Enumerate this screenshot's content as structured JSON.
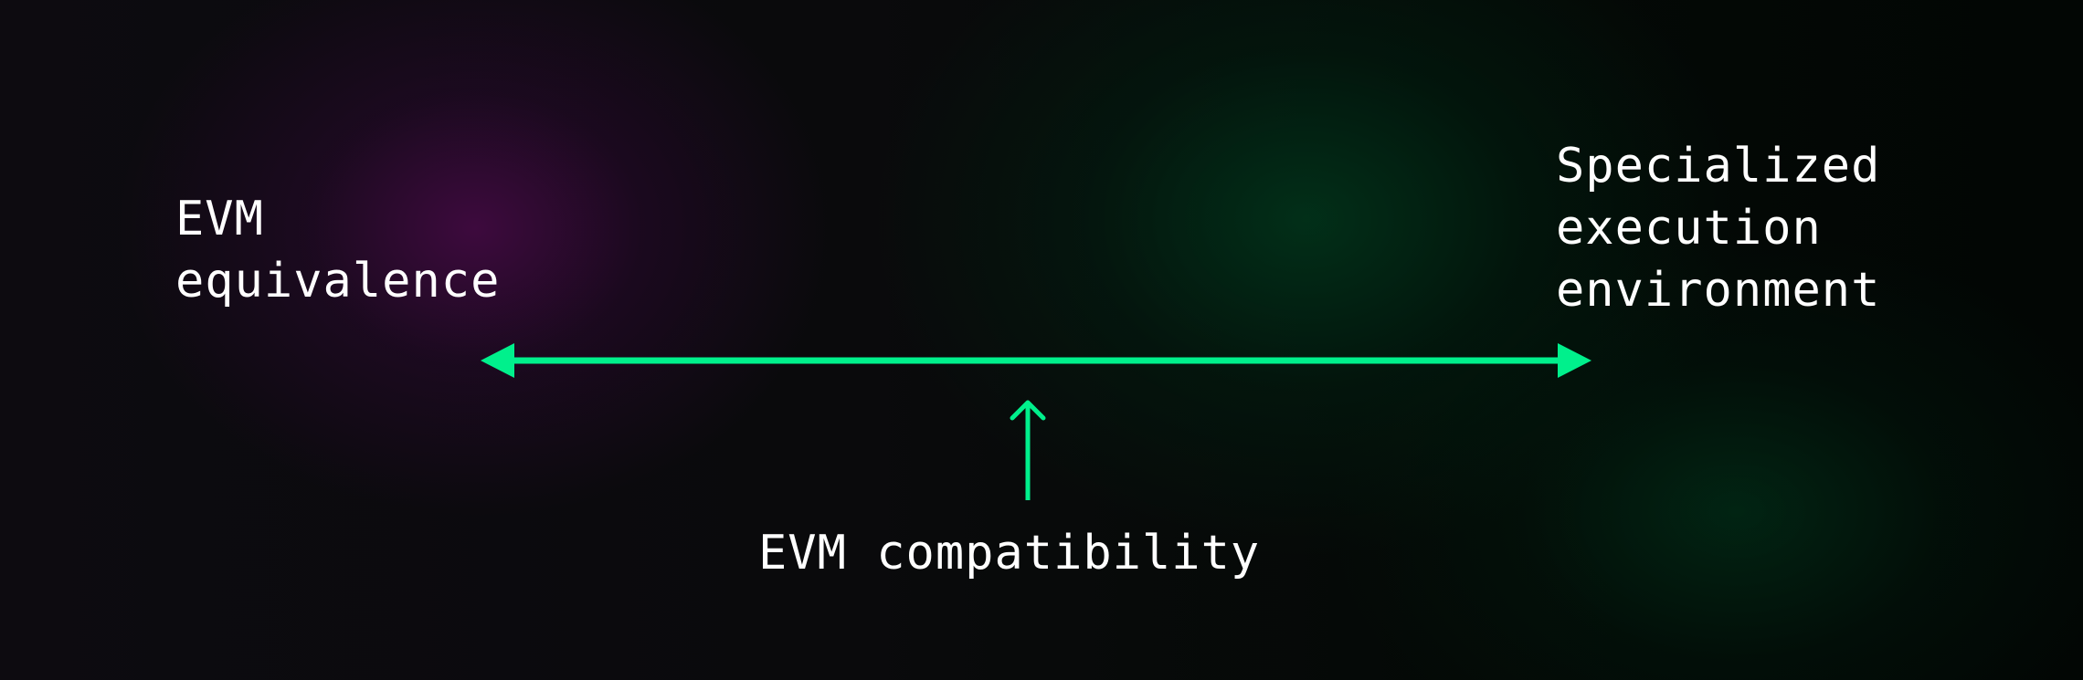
{
  "left_label": {
    "lines": [
      "EVM",
      "equivalence"
    ]
  },
  "right_label": {
    "lines": [
      "Specialized",
      "execution",
      "environment"
    ]
  },
  "bottom_label": "EVM compatibility",
  "colors": {
    "accent": "#00f08c",
    "text": "#ffffff",
    "glow_left": "#460a46",
    "glow_right": "#003c1e"
  },
  "icons": {
    "spectrum_arrow": "double-headed-arrow-icon",
    "pointer_arrow": "up-arrow-icon"
  }
}
